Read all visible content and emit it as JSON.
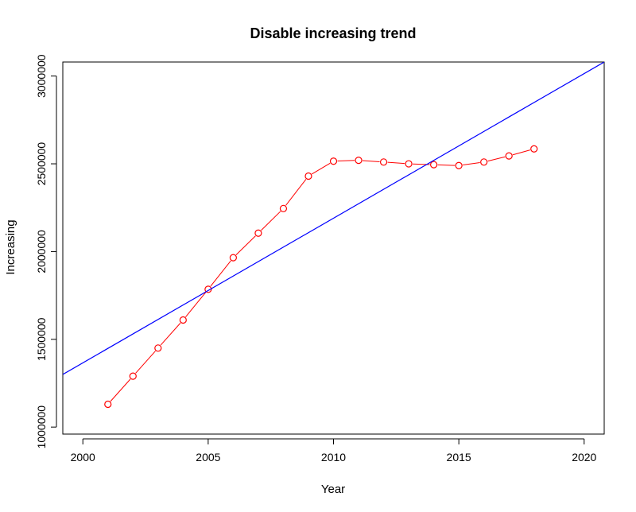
{
  "chart_data": {
    "type": "line",
    "title": "Disable increasing trend",
    "xlabel": "Year",
    "ylabel": "Increasing",
    "xlim": [
      1999.2,
      2020.8
    ],
    "ylim": [
      960000,
      3080000
    ],
    "x_ticks": [
      2000,
      2005,
      2010,
      2015,
      2020
    ],
    "y_ticks": [
      1000000,
      1500000,
      2000000,
      2500000,
      3000000
    ],
    "grid": false,
    "legend": "none",
    "series": [
      {
        "style": "line-with-open-circles",
        "color": "#ff0000",
        "x": [
          2001,
          2002,
          2003,
          2004,
          2005,
          2006,
          2007,
          2008,
          2009,
          2010,
          2011,
          2012,
          2013,
          2014,
          2015,
          2016,
          2017,
          2018
        ],
        "y": [
          1130000,
          1290000,
          1450000,
          1610000,
          1785000,
          1965000,
          2105000,
          2245000,
          2430000,
          2515000,
          2520000,
          2510000,
          2500000,
          2495000,
          2490000,
          2510000,
          2545000,
          2585000
        ]
      },
      {
        "style": "trend-line",
        "color": "#0000ff",
        "x": [
          1999.2,
          2020.8
        ],
        "y": [
          1300000,
          3080000
        ]
      }
    ]
  }
}
